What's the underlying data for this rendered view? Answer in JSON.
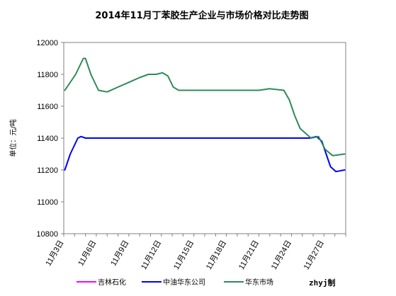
{
  "chart_data": {
    "type": "line",
    "title": "2014年11月丁苯胶生产企业与市场价格对比走势图",
    "ylabel": "单位：元/吨",
    "xlabel": "",
    "ylim": [
      10800,
      12000
    ],
    "yticks": [
      "10800",
      "11000",
      "11200",
      "11400",
      "11600",
      "11800",
      "12000"
    ],
    "xlim": [
      3,
      29
    ],
    "xticks": [
      {
        "x": 3,
        "label": "11月3日"
      },
      {
        "x": 6,
        "label": "11月6日"
      },
      {
        "x": 9,
        "label": "11月9日"
      },
      {
        "x": 12,
        "label": "11月12日"
      },
      {
        "x": 15,
        "label": "11月15日"
      },
      {
        "x": 18,
        "label": "11月18日"
      },
      {
        "x": 21,
        "label": "11月21日"
      },
      {
        "x": 24,
        "label": "11月24日"
      },
      {
        "x": 27,
        "label": "11月27日"
      }
    ],
    "grid": false,
    "legend_position": "bottom",
    "series": [
      {
        "name": "吉林石化",
        "color": "#ff00ff",
        "points": []
      },
      {
        "name": "中油华东公司",
        "color": "#0000ff",
        "points": [
          [
            3.1,
            11200
          ],
          [
            3.6,
            11300
          ],
          [
            4.3,
            11400
          ],
          [
            4.6,
            11410
          ],
          [
            5,
            11400
          ],
          [
            6,
            11400
          ],
          [
            8,
            11400
          ],
          [
            10,
            11400
          ],
          [
            12,
            11400
          ],
          [
            14,
            11400
          ],
          [
            16,
            11400
          ],
          [
            18,
            11400
          ],
          [
            20,
            11400
          ],
          [
            22,
            11400
          ],
          [
            24,
            11400
          ],
          [
            25.7,
            11400
          ],
          [
            26.3,
            11410
          ],
          [
            26.8,
            11380
          ],
          [
            27.2,
            11300
          ],
          [
            27.6,
            11220
          ],
          [
            28.1,
            11190
          ],
          [
            28.9,
            11200
          ]
        ]
      },
      {
        "name": "华东市场",
        "color": "#2e8b57",
        "points": [
          [
            3.1,
            11700
          ],
          [
            4.1,
            11800
          ],
          [
            4.8,
            11900
          ],
          [
            5,
            11900
          ],
          [
            5.5,
            11800
          ],
          [
            6.2,
            11700
          ],
          [
            7,
            11690
          ],
          [
            8,
            11720
          ],
          [
            9,
            11750
          ],
          [
            10,
            11780
          ],
          [
            10.8,
            11800
          ],
          [
            11.5,
            11800
          ],
          [
            12.1,
            11810
          ],
          [
            12.6,
            11790
          ],
          [
            13.1,
            11720
          ],
          [
            13.6,
            11700
          ],
          [
            15,
            11700
          ],
          [
            17,
            11700
          ],
          [
            19,
            11700
          ],
          [
            21,
            11700
          ],
          [
            22,
            11710
          ],
          [
            23.3,
            11700
          ],
          [
            23.8,
            11640
          ],
          [
            24.3,
            11540
          ],
          [
            24.8,
            11460
          ],
          [
            25.8,
            11400
          ],
          [
            26.5,
            11410
          ],
          [
            27.1,
            11330
          ],
          [
            27.8,
            11290
          ],
          [
            28.9,
            11300
          ]
        ]
      }
    ]
  },
  "credit": "zhyj制"
}
